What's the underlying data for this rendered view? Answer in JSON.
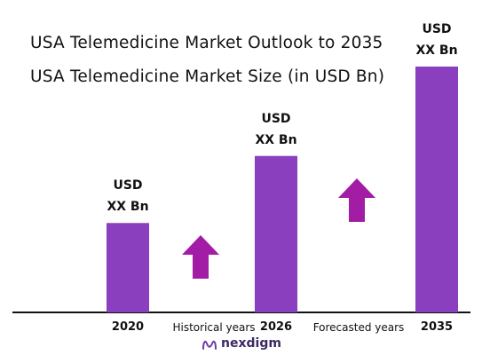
{
  "chart_data": {
    "type": "bar",
    "title": "USA Telemedicine Market Outlook to 2035",
    "subtitle": "USA Telemedicine Market Size (in USD Bn)",
    "categories": [
      "2020",
      "2026",
      "2035"
    ],
    "values": [
      1,
      1.75,
      2.75
    ],
    "value_labels": [
      {
        "line1": "USD",
        "line2": "XX Bn"
      },
      {
        "line1": "USD",
        "line2": "XX Bn"
      },
      {
        "line1": "USD",
        "line2": "XX Bn"
      }
    ],
    "annotations": [
      "Historical years",
      "Forecasted years"
    ],
    "bar_color": "#8a3fbf",
    "arrow_color": "#a21ca6",
    "ylim": [
      0,
      2.75
    ],
    "grid": false
  },
  "brand": {
    "name": "nexdigm"
  }
}
